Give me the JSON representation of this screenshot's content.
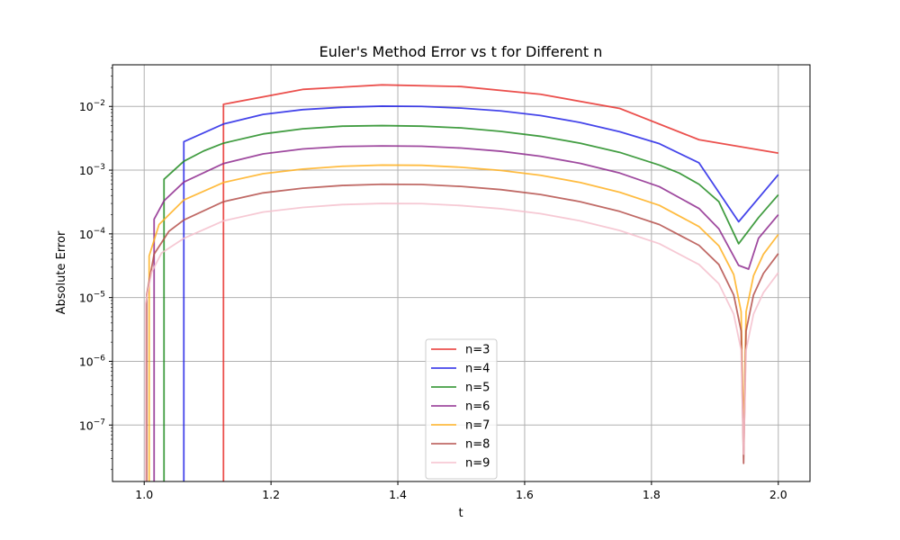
{
  "chart_data": {
    "type": "line",
    "title": "Euler's Method Error vs t for Different n",
    "xlabel": "t",
    "ylabel": "Absolute Error",
    "xlim": [
      0.95,
      2.05
    ],
    "ylim": [
      1.3e-08,
      0.045
    ],
    "yscale": "log",
    "grid": true,
    "legend_placement": "lower center",
    "x_ticks": [
      1.0,
      1.2,
      1.4,
      1.6,
      1.8,
      2.0
    ],
    "x_tick_labels": [
      "1.0",
      "1.2",
      "1.4",
      "1.6",
      "1.8",
      "2.0"
    ],
    "y_ticks": [
      {
        "value": 1e-07,
        "base": "10",
        "exp": "−7"
      },
      {
        "value": 1e-06,
        "base": "10",
        "exp": "−6"
      },
      {
        "value": 1e-05,
        "base": "10",
        "exp": "−5"
      },
      {
        "value": 0.0001,
        "base": "10",
        "exp": "−4"
      },
      {
        "value": 0.001,
        "base": "10",
        "exp": "−3"
      },
      {
        "value": 0.01,
        "base": "10",
        "exp": "−2"
      }
    ],
    "series": [
      {
        "name": "n=3",
        "color": "#e8312e",
        "x": [
          1.125,
          1.125,
          1.25,
          1.375,
          1.5,
          1.625,
          1.75,
          1.875,
          2.0
        ],
        "y": [
          1.3e-08,
          0.0108,
          0.0185,
          0.0218,
          0.0205,
          0.0155,
          0.0093,
          0.003,
          0.00185
        ]
      },
      {
        "name": "n=4",
        "color": "#2424e6",
        "x": [
          1.0625,
          1.0625,
          1.125,
          1.1875,
          1.25,
          1.3125,
          1.375,
          1.4375,
          1.5,
          1.5625,
          1.625,
          1.6875,
          1.75,
          1.8125,
          1.875,
          1.9375,
          2.0
        ],
        "y": [
          1.3e-08,
          0.0028,
          0.0053,
          0.0075,
          0.0089,
          0.0097,
          0.0101,
          0.01,
          0.0094,
          0.0085,
          0.0072,
          0.0056,
          0.004,
          0.0026,
          0.0013,
          0.000155,
          0.00085
        ]
      },
      {
        "name": "n=5",
        "color": "#218c21",
        "x": [
          1.03125,
          1.03125,
          1.0625,
          1.09375,
          1.125,
          1.1875,
          1.25,
          1.3125,
          1.375,
          1.4375,
          1.5,
          1.5625,
          1.625,
          1.6875,
          1.75,
          1.8125,
          1.84375,
          1.875,
          1.90625,
          1.9375,
          1.96875,
          2.0
        ],
        "y": [
          1.3e-08,
          0.00072,
          0.00138,
          0.002,
          0.00265,
          0.0037,
          0.00445,
          0.0049,
          0.005,
          0.0049,
          0.0046,
          0.00405,
          0.0034,
          0.00265,
          0.0019,
          0.0012,
          0.0009,
          0.0006,
          0.00032,
          7e-05,
          0.00018,
          0.00041
        ]
      },
      {
        "name": "n=6",
        "color": "#8e2a8e",
        "x": [
          1.015625,
          1.015625,
          1.03125,
          1.0625,
          1.125,
          1.1875,
          1.25,
          1.3125,
          1.375,
          1.4375,
          1.5,
          1.5625,
          1.625,
          1.6875,
          1.75,
          1.8125,
          1.875,
          1.90625,
          1.9375,
          1.953125,
          1.96875,
          2.0
        ],
        "y": [
          1.3e-08,
          0.00017,
          0.00033,
          0.00065,
          0.00127,
          0.0018,
          0.00215,
          0.00235,
          0.0024,
          0.00237,
          0.00222,
          0.00198,
          0.00165,
          0.00128,
          0.0009,
          0.00055,
          0.00025,
          0.00012,
          3.2e-05,
          2.8e-05,
          8.5e-05,
          0.0002
        ]
      },
      {
        "name": "n=7",
        "color": "#ffb020",
        "x": [
          1.0078,
          1.0078,
          1.0234,
          1.0625,
          1.125,
          1.1875,
          1.25,
          1.3125,
          1.375,
          1.4375,
          1.5,
          1.5625,
          1.625,
          1.6875,
          1.75,
          1.8125,
          1.875,
          1.90625,
          1.9297,
          1.9414,
          1.9453,
          1.9492,
          1.9609,
          1.9766,
          2.0
        ],
        "y": [
          1.3e-08,
          4.5e-05,
          0.00014,
          0.00034,
          0.00064,
          0.00088,
          0.00104,
          0.00115,
          0.0012,
          0.00119,
          0.00111,
          0.00099,
          0.00083,
          0.00064,
          0.00045,
          0.00028,
          0.00013,
          6.5e-05,
          2.3e-05,
          6e-06,
          5.5e-08,
          6e-06,
          2.2e-05,
          4.8e-05,
          9.8e-05
        ]
      },
      {
        "name": "n=8",
        "color": "#b5504b",
        "x": [
          1.0039,
          1.0039,
          1.0156,
          1.0391,
          1.0625,
          1.125,
          1.1875,
          1.25,
          1.3125,
          1.375,
          1.4375,
          1.5,
          1.5625,
          1.625,
          1.6875,
          1.75,
          1.8125,
          1.875,
          1.90625,
          1.9297,
          1.9414,
          1.9453,
          1.9492,
          1.9609,
          1.9766,
          2.0
        ],
        "y": [
          1.3e-08,
          1.1e-05,
          4.8e-05,
          0.00011,
          0.000165,
          0.00032,
          0.00044,
          0.00052,
          0.000575,
          0.0006,
          0.000595,
          0.000555,
          0.000495,
          0.000415,
          0.00032,
          0.000225,
          0.00014,
          6.6e-05,
          3.3e-05,
          1.1e-05,
          3e-06,
          2.5e-08,
          3e-06,
          1.1e-05,
          2.4e-05,
          4.9e-05
        ]
      },
      {
        "name": "n=9",
        "color": "#f5c0cc",
        "x": [
          1.002,
          1.002,
          1.0117,
          1.0273,
          1.0625,
          1.125,
          1.1875,
          1.25,
          1.3125,
          1.375,
          1.4375,
          1.5,
          1.5625,
          1.625,
          1.6875,
          1.75,
          1.8125,
          1.875,
          1.90625,
          1.9297,
          1.9414,
          1.9453,
          1.9492,
          1.9609,
          1.9766,
          2.0
        ],
        "y": [
          1.3e-08,
          8e-06,
          2.5e-05,
          5e-05,
          8.5e-05,
          0.00016,
          0.00022,
          0.00026,
          0.000288,
          0.0003,
          0.000298,
          0.000278,
          0.000248,
          0.000208,
          0.00016,
          0.000113,
          7e-05,
          3.3e-05,
          1.65e-05,
          5.5e-06,
          1.5e-06,
          3.5e-08,
          1.5e-06,
          5.5e-06,
          1.2e-05,
          2.45e-05
        ]
      }
    ]
  }
}
